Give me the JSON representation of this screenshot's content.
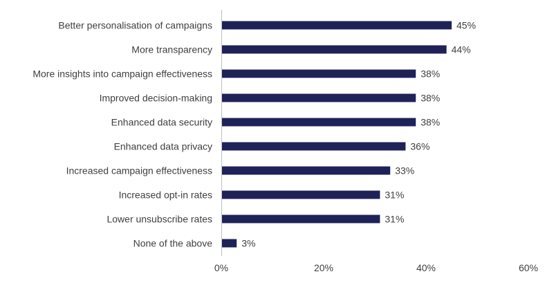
{
  "chart_data": {
    "type": "bar",
    "orientation": "horizontal",
    "categories": [
      "Better personalisation of campaigns",
      "More transparency",
      "More insights into campaign effectiveness",
      "Improved decision-making",
      "Enhanced data security",
      "Enhanced data privacy",
      "Increased campaign effectiveness",
      "Increased opt-in rates",
      "Lower unsubscribe rates",
      "None of the above"
    ],
    "values": [
      45,
      44,
      38,
      38,
      38,
      36,
      33,
      31,
      31,
      3
    ],
    "value_labels": [
      "45%",
      "44%",
      "38%",
      "38%",
      "38%",
      "36%",
      "33%",
      "31%",
      "31%",
      "3%"
    ],
    "xlim": [
      0,
      60
    ],
    "x_ticks": [
      0,
      20,
      40,
      60
    ],
    "x_tick_labels": [
      "0%",
      "20%",
      "40%",
      "60%"
    ],
    "grid": false,
    "bar_color": "#1f2257",
    "axis_color": "#bfbfbf",
    "text_color": "#404040"
  }
}
